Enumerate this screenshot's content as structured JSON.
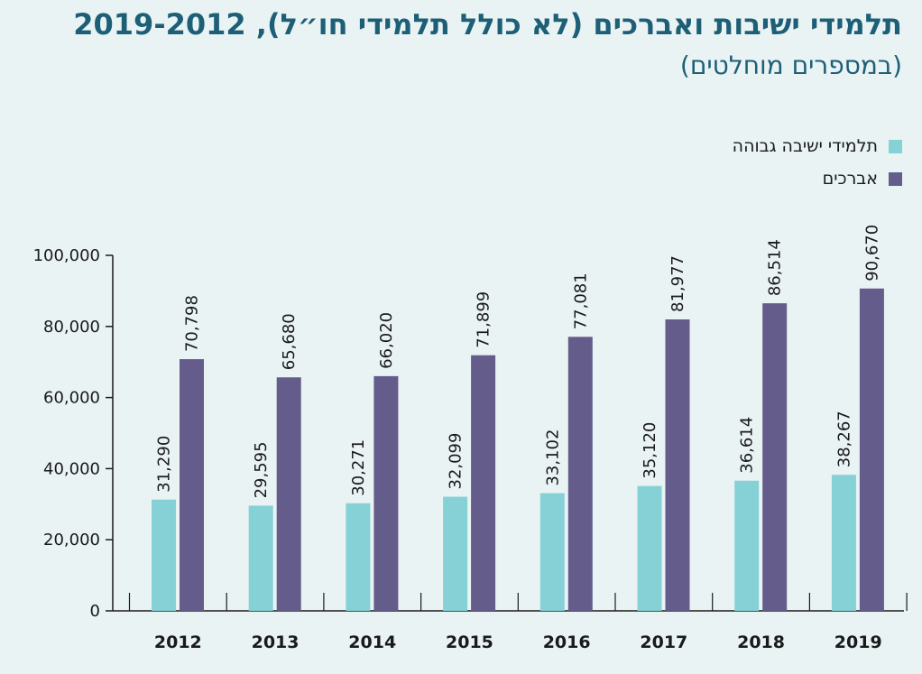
{
  "chart_data": {
    "type": "bar",
    "title": "תלמידי ישיבות ואברכים (לא כולל תלמידי חו״ל), 2019-2012",
    "subtitle": "(במספרים מוחלטים)",
    "categories": [
      "2012",
      "2013",
      "2014",
      "2015",
      "2016",
      "2017",
      "2018",
      "2019"
    ],
    "series": [
      {
        "name": "תלמידי ישיבה גבוהה",
        "color": "#86d1d5",
        "values": [
          31290,
          29595,
          30271,
          32099,
          33102,
          35120,
          36614,
          38267
        ],
        "labels": [
          "31,290",
          "29,595",
          "30,271",
          "32,099",
          "33,102",
          "35,120",
          "36,614",
          "38,267"
        ]
      },
      {
        "name": "אברכים",
        "color": "#645c8b",
        "values": [
          70798,
          65680,
          66020,
          71899,
          77081,
          81977,
          86514,
          90670
        ],
        "labels": [
          "70,798",
          "65,680",
          "66,020",
          "71,899",
          "77,081",
          "81,977",
          "86,514",
          "90,670"
        ]
      }
    ],
    "ylim": [
      0,
      100000
    ],
    "yticks": [
      0,
      20000,
      40000,
      60000,
      80000,
      100000
    ],
    "ytick_labels": [
      "0",
      "20,000",
      "40,000",
      "60,000",
      "80,000",
      "100,000"
    ],
    "xlabel": "",
    "ylabel": "",
    "grid": false,
    "legend_position": "top-right"
  }
}
